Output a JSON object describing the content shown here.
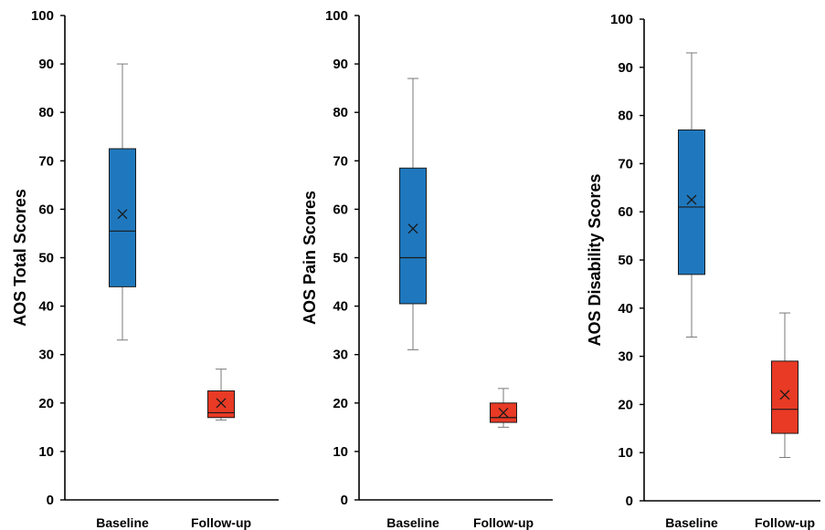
{
  "chart_data": [
    {
      "type": "box",
      "ylabel": "AOS Total Scores",
      "ylim": [
        0,
        100
      ],
      "yticks": [
        0,
        10,
        20,
        30,
        40,
        50,
        60,
        70,
        80,
        90,
        100
      ],
      "categories": [
        "Baseline",
        "Follow-up"
      ],
      "boxes": [
        {
          "category": "Baseline",
          "min": 33,
          "q1": 44,
          "median": 55.5,
          "q3": 72.5,
          "max": 90,
          "mean": 59,
          "color": "#1F78BE"
        },
        {
          "category": "Follow-up",
          "min": 16.5,
          "q1": 17,
          "median": 18,
          "q3": 22.5,
          "max": 27,
          "mean": 20,
          "color": "#E83A25"
        }
      ],
      "grid": false,
      "legend": "none"
    },
    {
      "type": "box",
      "ylabel": "AOS Pain Scores",
      "ylim": [
        0,
        100
      ],
      "yticks": [
        0,
        10,
        20,
        30,
        40,
        50,
        60,
        70,
        80,
        90,
        100
      ],
      "categories": [
        "Baseline",
        "Follow-up"
      ],
      "boxes": [
        {
          "category": "Baseline",
          "min": 31,
          "q1": 40.5,
          "median": 50,
          "q3": 68.5,
          "max": 87,
          "mean": 56,
          "color": "#1F78BE"
        },
        {
          "category": "Follow-up",
          "min": 15,
          "q1": 16,
          "median": 17,
          "q3": 20,
          "max": 23,
          "mean": 18,
          "color": "#E83A25"
        }
      ],
      "grid": false,
      "legend": "none"
    },
    {
      "type": "box",
      "ylabel": "AOS Disability Scores",
      "ylim": [
        0,
        100
      ],
      "yticks": [
        0,
        10,
        20,
        30,
        40,
        50,
        60,
        70,
        80,
        90,
        100
      ],
      "categories": [
        "Baseline",
        "Follow-up"
      ],
      "boxes": [
        {
          "category": "Baseline",
          "min": 34,
          "q1": 47,
          "median": 61,
          "q3": 77,
          "max": 93,
          "mean": 62.5,
          "color": "#1F78BE"
        },
        {
          "category": "Follow-up",
          "min": 9,
          "q1": 14,
          "median": 19,
          "q3": 29,
          "max": 39,
          "mean": 22,
          "color": "#E83A25"
        }
      ],
      "grid": false,
      "legend": "none"
    }
  ]
}
